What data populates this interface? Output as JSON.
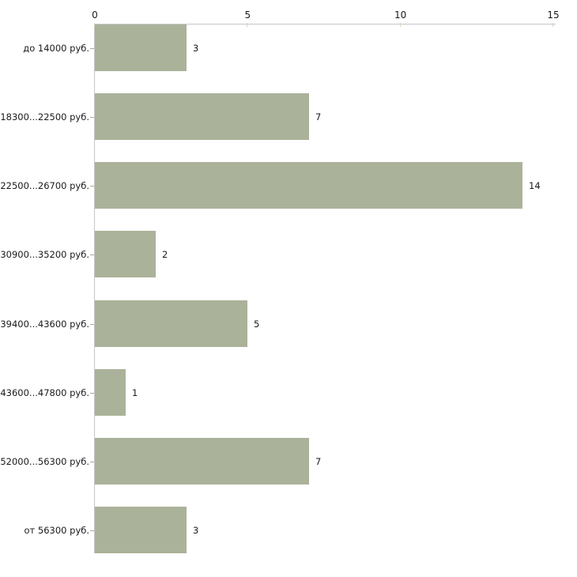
{
  "chart_data": {
    "type": "bar",
    "orientation": "horizontal",
    "title": "",
    "xlabel": "",
    "ylabel": "",
    "categories": [
      "до 14000 руб.",
      "18300...22500 руб.",
      "22500...26700 руб.",
      "30900...35200 руб.",
      "39400...43600 руб.",
      "43600...47800 руб.",
      "52000...56300 руб.",
      "от 56300 руб."
    ],
    "values": [
      3,
      7,
      14,
      2,
      5,
      1,
      7,
      3
    ],
    "value_labels": [
      "3",
      "7",
      "14",
      "2",
      "5",
      "1",
      "7",
      "3"
    ],
    "xlim": [
      0,
      15
    ],
    "x_ticks": [
      0,
      5,
      10,
      15
    ],
    "x_tick_labels": [
      "0",
      "5",
      "10",
      "15"
    ],
    "axis_position": "top",
    "grid": false,
    "legend": false,
    "colors": {
      "bar": "#abb29a",
      "axis_line": "#c6c6c6",
      "x_tick_mark": "#d3d6bd",
      "y_tick_mark": "#b0a795",
      "text": "#1a1a1a",
      "background": "#ffffff"
    }
  }
}
